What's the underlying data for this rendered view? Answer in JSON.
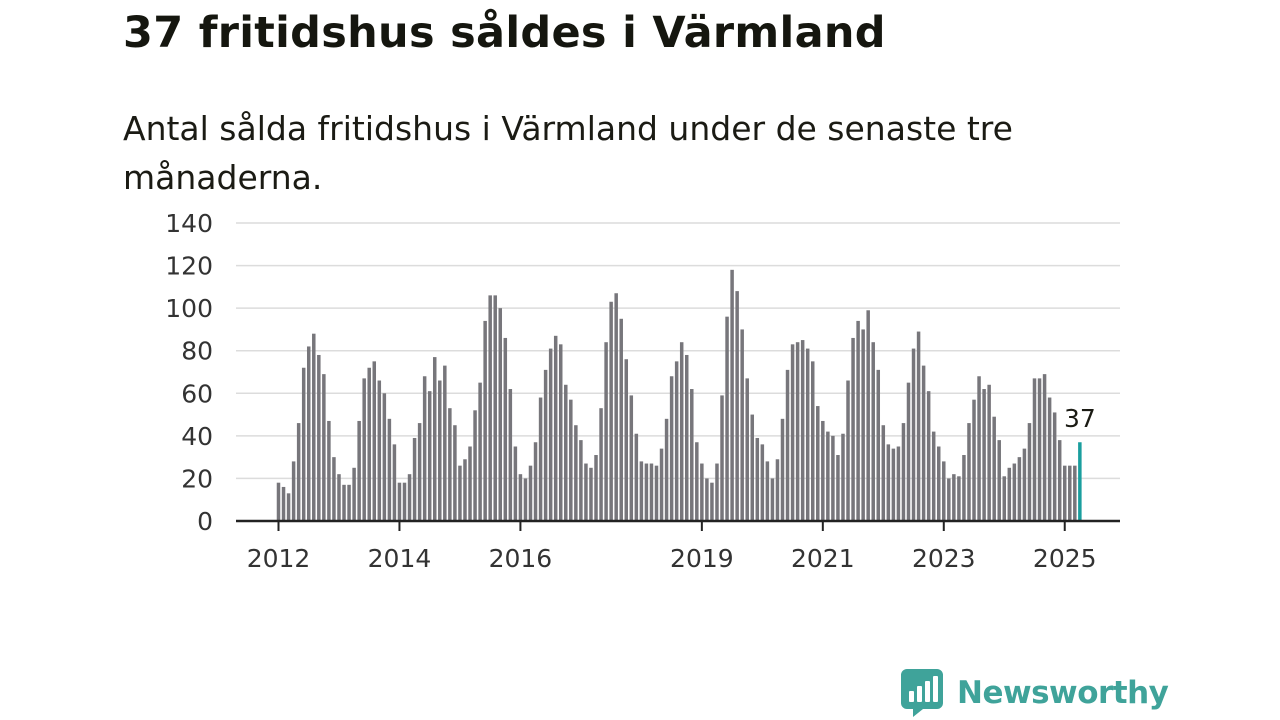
{
  "title": "37 fritidshus såldes i Värmland",
  "subtitle": "Antal sålda fritidshus i Värmland under de senaste tre månaderna.",
  "brand": {
    "name": "Newsworthy",
    "icon": "newsworthy-logo-icon",
    "color": "#3fa39a"
  },
  "colors": {
    "bar": "#77767b",
    "highlight": "#1a9e9e",
    "grid": "#dcdcdc",
    "axis": "#222222"
  },
  "chart_data": {
    "type": "bar",
    "title": "37 fritidshus såldes i Värmland",
    "subtitle": "Antal sålda fritidshus i Värmland under de senaste tre månaderna.",
    "xlabel": "",
    "ylabel": "",
    "ylim": [
      0,
      140
    ],
    "y_ticks": [
      0,
      20,
      40,
      60,
      80,
      100,
      120,
      140
    ],
    "x_ticks": [
      {
        "label": "2012",
        "index": 0
      },
      {
        "label": "2014",
        "index": 24
      },
      {
        "label": "2016",
        "index": 48
      },
      {
        "label": "2019",
        "index": 84
      },
      {
        "label": "2021",
        "index": 108
      },
      {
        "label": "2023",
        "index": 132
      },
      {
        "label": "2025",
        "index": 156
      }
    ],
    "grid": true,
    "legend": "none",
    "start_month": "2012-01",
    "values": [
      18,
      16,
      13,
      28,
      46,
      72,
      82,
      88,
      78,
      69,
      47,
      30,
      22,
      17,
      17,
      25,
      47,
      67,
      72,
      75,
      66,
      60,
      48,
      36,
      18,
      18,
      22,
      39,
      46,
      68,
      61,
      77,
      66,
      73,
      53,
      45,
      26,
      29,
      35,
      52,
      65,
      94,
      106,
      106,
      100,
      86,
      62,
      35,
      22,
      20,
      26,
      37,
      58,
      71,
      81,
      87,
      83,
      64,
      57,
      45,
      38,
      27,
      25,
      31,
      53,
      84,
      103,
      107,
      95,
      76,
      59,
      41,
      28,
      27,
      27,
      26,
      34,
      48,
      68,
      75,
      84,
      78,
      62,
      37,
      27,
      20,
      18,
      27,
      59,
      96,
      118,
      108,
      90,
      67,
      50,
      39,
      36,
      28,
      20,
      29,
      48,
      71,
      83,
      84,
      85,
      81,
      75,
      54,
      47,
      42,
      40,
      31,
      41,
      66,
      86,
      94,
      90,
      99,
      84,
      71,
      45,
      36,
      34,
      35,
      46,
      65,
      81,
      89,
      73,
      61,
      42,
      35,
      28,
      20,
      22,
      21,
      31,
      46,
      57,
      68,
      62,
      64,
      49,
      38,
      21,
      25,
      27,
      30,
      34,
      46,
      67,
      67,
      69,
      58,
      51,
      38,
      26,
      26,
      26,
      37
    ],
    "highlight": {
      "index": 159,
      "value": 37,
      "label": "37"
    }
  }
}
